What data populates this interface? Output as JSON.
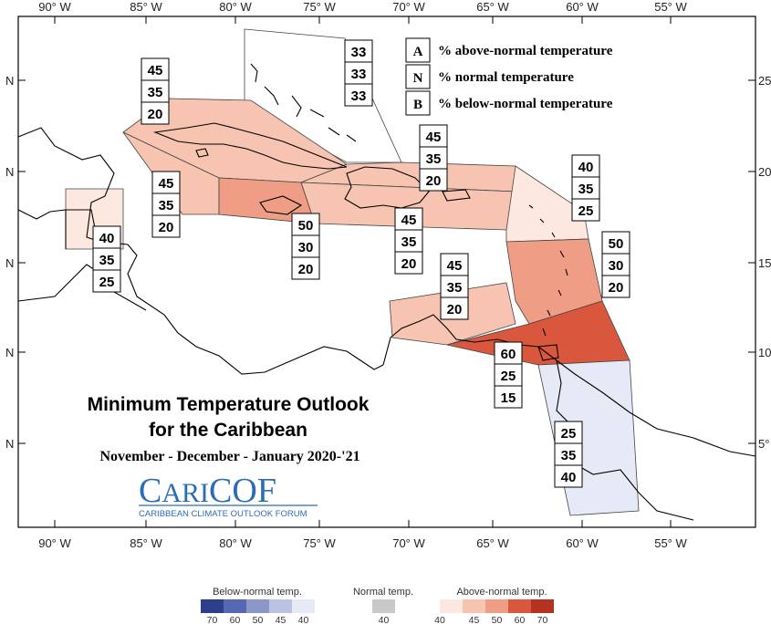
{
  "map": {
    "title_line1": "Minimum Temperature Outlook",
    "title_line2": "for the Caribbean",
    "period": "November - December - January 2020-'21",
    "logo_text": "CariCOF",
    "logo_subtext": "CARIBBEAN CLIMATE OUTLOOK FORUM"
  },
  "axes": {
    "lon_ticks": [
      "90° W",
      "85° W",
      "80° W",
      "75° W",
      "70° W",
      "65° W",
      "60° W",
      "55° W"
    ],
    "lat_ticks_left": [
      "N",
      "N",
      "N",
      "N",
      "N"
    ],
    "lat_ticks_right": [
      "25",
      "20",
      "15",
      "10",
      "5°"
    ]
  },
  "key": [
    {
      "letter": "A",
      "text": "% above-normal temperature"
    },
    {
      "letter": "N",
      "text": "% normal temperature"
    },
    {
      "letter": "B",
      "text": "% below-normal temperature"
    }
  ],
  "regions": [
    {
      "id": "bahamas",
      "A": "33",
      "N": "33",
      "B": "33",
      "category": "equal",
      "fill": "#ffffff"
    },
    {
      "id": "cuba",
      "A": "45",
      "N": "35",
      "B": "20",
      "category": "above",
      "fill": "#f6c4b0"
    },
    {
      "id": "cayman",
      "A": "45",
      "N": "35",
      "B": "20",
      "category": "above",
      "fill": "#f6c4b0"
    },
    {
      "id": "jamaica",
      "A": "50",
      "N": "30",
      "B": "20",
      "category": "above",
      "fill": "#ef9e85"
    },
    {
      "id": "hispaniola-north",
      "A": "45",
      "N": "35",
      "B": "20",
      "category": "above",
      "fill": "#f6c4b0"
    },
    {
      "id": "hispaniola-south",
      "A": "45",
      "N": "35",
      "B": "20",
      "category": "above",
      "fill": "#f6c4b0"
    },
    {
      "id": "belize",
      "A": "40",
      "N": "35",
      "B": "25",
      "category": "above",
      "fill": "#fde8df"
    },
    {
      "id": "leeward",
      "A": "40",
      "N": "35",
      "B": "25",
      "category": "above",
      "fill": "#fde8df"
    },
    {
      "id": "windward",
      "A": "50",
      "N": "30",
      "B": "20",
      "category": "above",
      "fill": "#ef9e85"
    },
    {
      "id": "abc-islands",
      "A": "45",
      "N": "35",
      "B": "20",
      "category": "above",
      "fill": "#f6c4b0"
    },
    {
      "id": "trinidad",
      "A": "60",
      "N": "25",
      "B": "15",
      "category": "above",
      "fill": "#d9573d"
    },
    {
      "id": "guianas",
      "A": "25",
      "N": "35",
      "B": "40",
      "category": "below",
      "fill": "#e6eaf6"
    }
  ],
  "colorbar": {
    "below_label": "Below-normal temp.",
    "normal_label": "Normal temp.",
    "above_label": "Above-normal temp.",
    "below_colors": [
      "#2d3f8a",
      "#5568b3",
      "#8b96c9",
      "#bcc3e2",
      "#e6eaf6"
    ],
    "below_ticks": [
      "70",
      "60",
      "50",
      "45",
      "40"
    ],
    "normal_color": "#c8c8c8",
    "normal_tick": "40",
    "above_colors": [
      "#fde8df",
      "#f6c4b0",
      "#ef9e85",
      "#d9573d",
      "#b4321f"
    ],
    "above_ticks": [
      "40",
      "45",
      "50",
      "60",
      "70"
    ]
  }
}
